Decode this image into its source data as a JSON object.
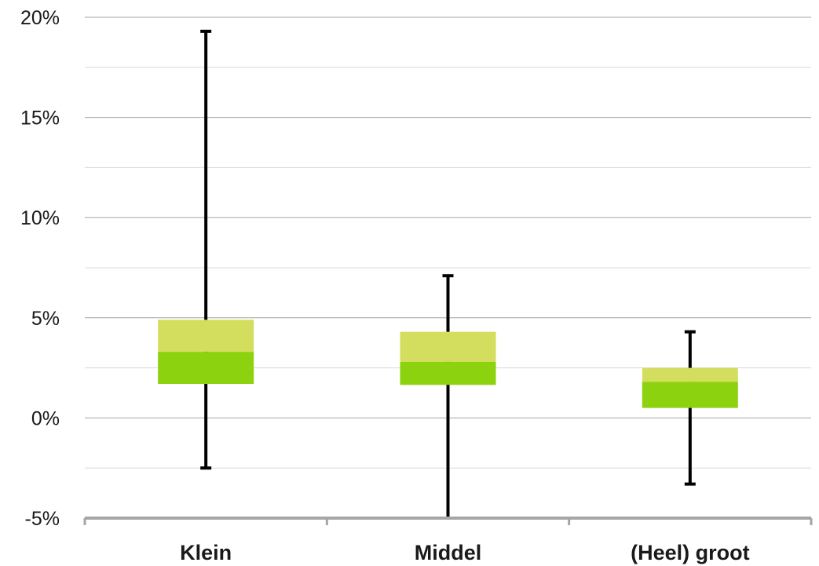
{
  "chart_data": {
    "type": "box",
    "title": "",
    "xlabel": "",
    "ylabel": "",
    "ylim": [
      -5,
      20
    ],
    "y_ticks": [
      -5,
      0,
      5,
      10,
      15,
      20
    ],
    "y_tick_labels": [
      "-5%",
      "0%",
      "5%",
      "10%",
      "15%",
      "20%"
    ],
    "grid": {
      "major": true,
      "minor": true
    },
    "categories": [
      "Klein",
      "Middel",
      "(Heel) groot"
    ],
    "boxes": [
      {
        "category": "Klein",
        "min": -2.5,
        "q1": 1.7,
        "median": 3.3,
        "q3": 4.9,
        "max": 19.3
      },
      {
        "category": "Middel",
        "min": -5.0,
        "q1": 1.65,
        "median": 2.8,
        "q3": 4.3,
        "max": 7.1
      },
      {
        "category": "(Heel) groot",
        "min": -3.3,
        "q1": 0.5,
        "median": 1.8,
        "q3": 2.5,
        "max": 4.3
      }
    ],
    "colors": {
      "lower_box": "#8cd20f",
      "upper_box": "#d4de5e",
      "whisker": "#000000",
      "gridline": "#a6a6a6",
      "minor_gridline": "#d9d9d9",
      "axis": "#a6a6a6"
    }
  }
}
